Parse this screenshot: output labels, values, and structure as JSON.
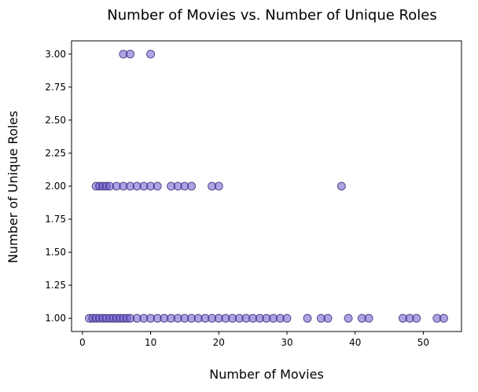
{
  "chart_data": {
    "type": "scatter",
    "title": "Number of Movies vs. Number of Unique Roles",
    "xlabel": "Number of Movies",
    "ylabel": "Number of Unique Roles",
    "xlim": [
      -1.6,
      55.6
    ],
    "ylim": [
      0.9,
      3.1
    ],
    "x_ticks": [
      0,
      10,
      20,
      30,
      40,
      50
    ],
    "x_tick_labels": [
      "0",
      "10",
      "20",
      "30",
      "40",
      "50"
    ],
    "y_ticks": [
      1.0,
      1.25,
      1.5,
      1.75,
      2.0,
      2.25,
      2.5,
      2.75,
      3.0
    ],
    "y_tick_labels": [
      "1.00",
      "1.25",
      "1.50",
      "1.75",
      "2.00",
      "2.25",
      "2.50",
      "2.75",
      "3.00"
    ],
    "grid": false,
    "legend": "none",
    "marker_color": "#6a5acd",
    "marker_edge_color": "#2b1f6e",
    "marker_alpha": 0.55,
    "series": [
      {
        "points": [
          {
            "x": 1,
            "y": 1
          },
          {
            "x": 1.5,
            "y": 1
          },
          {
            "x": 2,
            "y": 1
          },
          {
            "x": 2.5,
            "y": 1
          },
          {
            "x": 3,
            "y": 1
          },
          {
            "x": 3.5,
            "y": 1
          },
          {
            "x": 4,
            "y": 1
          },
          {
            "x": 4.5,
            "y": 1
          },
          {
            "x": 5,
            "y": 1
          },
          {
            "x": 5.5,
            "y": 1
          },
          {
            "x": 6,
            "y": 1
          },
          {
            "x": 6.5,
            "y": 1
          },
          {
            "x": 7,
            "y": 1
          },
          {
            "x": 8,
            "y": 1
          },
          {
            "x": 9,
            "y": 1
          },
          {
            "x": 10,
            "y": 1
          },
          {
            "x": 11,
            "y": 1
          },
          {
            "x": 12,
            "y": 1
          },
          {
            "x": 13,
            "y": 1
          },
          {
            "x": 14,
            "y": 1
          },
          {
            "x": 15,
            "y": 1
          },
          {
            "x": 16,
            "y": 1
          },
          {
            "x": 17,
            "y": 1
          },
          {
            "x": 18,
            "y": 1
          },
          {
            "x": 19,
            "y": 1
          },
          {
            "x": 20,
            "y": 1
          },
          {
            "x": 21,
            "y": 1
          },
          {
            "x": 22,
            "y": 1
          },
          {
            "x": 23,
            "y": 1
          },
          {
            "x": 24,
            "y": 1
          },
          {
            "x": 25,
            "y": 1
          },
          {
            "x": 26,
            "y": 1
          },
          {
            "x": 27,
            "y": 1
          },
          {
            "x": 28,
            "y": 1
          },
          {
            "x": 29,
            "y": 1
          },
          {
            "x": 30,
            "y": 1
          },
          {
            "x": 33,
            "y": 1
          },
          {
            "x": 35,
            "y": 1
          },
          {
            "x": 36,
            "y": 1
          },
          {
            "x": 39,
            "y": 1
          },
          {
            "x": 41,
            "y": 1
          },
          {
            "x": 42,
            "y": 1
          },
          {
            "x": 47,
            "y": 1
          },
          {
            "x": 48,
            "y": 1
          },
          {
            "x": 49,
            "y": 1
          },
          {
            "x": 52,
            "y": 1
          },
          {
            "x": 53,
            "y": 1
          },
          {
            "x": 2,
            "y": 2
          },
          {
            "x": 2.5,
            "y": 2
          },
          {
            "x": 3,
            "y": 2
          },
          {
            "x": 3.5,
            "y": 2
          },
          {
            "x": 4,
            "y": 2
          },
          {
            "x": 5,
            "y": 2
          },
          {
            "x": 6,
            "y": 2
          },
          {
            "x": 7,
            "y": 2
          },
          {
            "x": 8,
            "y": 2
          },
          {
            "x": 9,
            "y": 2
          },
          {
            "x": 10,
            "y": 2
          },
          {
            "x": 11,
            "y": 2
          },
          {
            "x": 13,
            "y": 2
          },
          {
            "x": 14,
            "y": 2
          },
          {
            "x": 15,
            "y": 2
          },
          {
            "x": 16,
            "y": 2
          },
          {
            "x": 19,
            "y": 2
          },
          {
            "x": 20,
            "y": 2
          },
          {
            "x": 38,
            "y": 2
          },
          {
            "x": 6,
            "y": 3
          },
          {
            "x": 7,
            "y": 3
          },
          {
            "x": 10,
            "y": 3
          }
        ]
      }
    ]
  }
}
